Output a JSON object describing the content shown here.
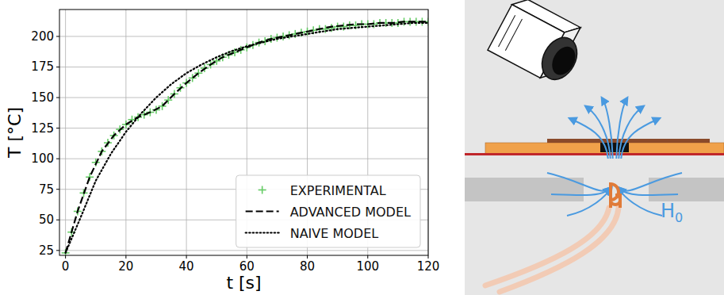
{
  "chart_data": {
    "type": "line",
    "xlabel": "t [s]",
    "ylabel": "T [°C]",
    "xlim": [
      -2,
      120
    ],
    "ylim": [
      21,
      222
    ],
    "xticks": [
      0,
      20,
      40,
      60,
      80,
      100,
      120
    ],
    "yticks": [
      25,
      50,
      75,
      100,
      125,
      150,
      175,
      200
    ],
    "grid": true,
    "legend": "lower right",
    "series": [
      {
        "name": "EXPERIMENTAL",
        "type": "scatter",
        "marker": "+",
        "color": "#66cc66",
        "x": [
          0,
          2,
          4,
          6,
          8,
          10,
          12,
          14,
          16,
          18,
          20,
          22,
          24,
          26,
          28,
          30,
          32,
          34,
          36,
          38,
          40,
          42,
          44,
          46,
          48,
          50,
          52,
          54,
          56,
          58,
          60,
          62,
          64,
          66,
          68,
          70,
          72,
          74,
          76,
          78,
          80,
          82,
          84,
          86,
          88,
          90,
          92,
          94,
          96,
          98,
          100,
          102,
          104,
          106,
          108,
          110,
          112,
          114,
          116,
          118,
          120
        ],
        "values": [
          23,
          40,
          57,
          72,
          85,
          97,
          106,
          113,
          119,
          124,
          128,
          132,
          134,
          136,
          138,
          140,
          143,
          148,
          153,
          158,
          162,
          166,
          170,
          174,
          177,
          180,
          183,
          185,
          187,
          189,
          191,
          193,
          195,
          196,
          198,
          199,
          200,
          201,
          202,
          203,
          204,
          205,
          206,
          206,
          207,
          208,
          208,
          209,
          209,
          210,
          210,
          210,
          211,
          211,
          211,
          211,
          212,
          212,
          212,
          212,
          212
        ]
      },
      {
        "name": "ADVANCED MODEL",
        "type": "line",
        "line_style": "dashed",
        "color": "#000000",
        "x": [
          0,
          4,
          8,
          12,
          16,
          20,
          24,
          28,
          32,
          36,
          40,
          44,
          48,
          52,
          56,
          60,
          64,
          68,
          72,
          76,
          80,
          84,
          88,
          92,
          96,
          100,
          104,
          108,
          112,
          116,
          120
        ],
        "values": [
          23,
          57,
          85,
          106,
          119,
          128,
          134,
          138,
          143,
          153,
          162,
          170,
          177,
          183,
          187,
          191,
          195,
          198,
          200,
          202,
          204,
          206,
          208,
          209,
          210,
          210,
          211,
          211,
          212,
          212,
          212
        ]
      },
      {
        "name": "NAIVE MODEL",
        "type": "line",
        "line_style": "dotted",
        "color": "#000000",
        "x": [
          0,
          5,
          10,
          15,
          20,
          25,
          30,
          35,
          40,
          45,
          50,
          55,
          60,
          65,
          70,
          75,
          80,
          85,
          90,
          95,
          100,
          105,
          110,
          115,
          120
        ],
        "values": [
          23,
          52,
          82,
          104,
          122,
          137,
          150,
          161,
          170,
          177,
          183,
          188,
          192,
          195,
          198,
          200,
          202,
          204,
          206,
          207,
          208,
          209,
          210,
          211,
          211
        ]
      }
    ]
  },
  "diagram": {
    "field_label": "H",
    "field_label_subscript": "0"
  }
}
